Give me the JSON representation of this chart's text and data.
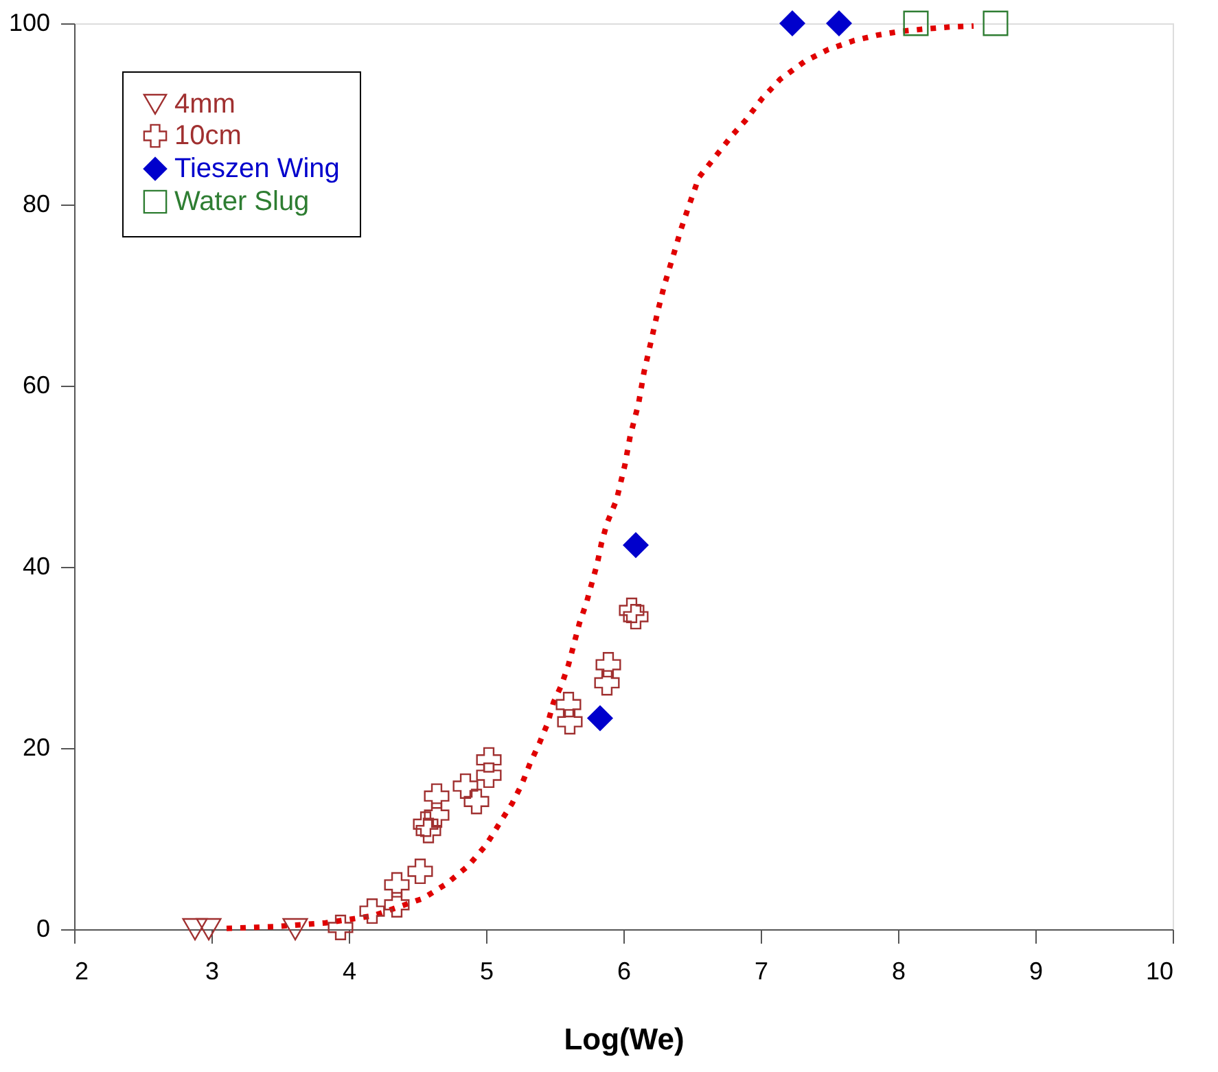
{
  "chart_data": {
    "type": "scatter",
    "xlabel": "Log(We)",
    "xlim": [
      2,
      10
    ],
    "xticks": [
      2,
      3,
      4,
      5,
      6,
      7,
      8,
      9,
      10
    ],
    "ylim": [
      0,
      100
    ],
    "yticks": [
      0,
      20,
      40,
      60,
      80,
      100
    ],
    "grid": false,
    "legend": "top left",
    "series": [
      {
        "name": "4mm",
        "color": "#a03030",
        "marker": "triangle",
        "x": [
          2.88,
          2.98,
          3.61
        ],
        "values": [
          0,
          0,
          0
        ]
      },
      {
        "name": "10cm",
        "color": "#a03030",
        "marker": "cross",
        "x": [
          3.94,
          4.17,
          4.35,
          4.35,
          4.52,
          4.58,
          4.56,
          4.64,
          4.64,
          4.85,
          4.93,
          5.02,
          5.02,
          5.6,
          5.61,
          5.89,
          5.88,
          6.06,
          6.09
        ],
        "values": [
          0.2,
          2,
          4.9,
          2.7,
          6.4,
          10.9,
          11.6,
          12.6,
          14.7,
          15.8,
          14.1,
          17,
          18.7,
          24.8,
          22.9,
          29.2,
          27.2,
          35.2,
          34.5
        ]
      },
      {
        "name": "Tieszen Wing",
        "color": "#0000cc",
        "marker": "diamond",
        "x": [
          5.83,
          6.09,
          7.23,
          7.57
        ],
        "values": [
          23.3,
          42.4,
          100,
          100
        ]
      },
      {
        "name": "Water Slug",
        "color": "#2e7d32",
        "marker": "square",
        "x": [
          8.13,
          8.71
        ],
        "values": [
          100,
          100
        ]
      },
      {
        "type": "line",
        "color": "#e00000",
        "line_style": "dotted",
        "marker": "none",
        "x": [
          3.11,
          3.29,
          3.47,
          3.83,
          4.01,
          4.18,
          4.54,
          4.71,
          4.87,
          5.0,
          5.09,
          5.19,
          5.26,
          5.32,
          5.39,
          5.45,
          5.49,
          5.55,
          5.6,
          5.64,
          5.68,
          5.73,
          5.77,
          5.81,
          5.84,
          5.88,
          5.95,
          6.01,
          6.05,
          6.11,
          6.15,
          6.2,
          6.25,
          6.3,
          6.36,
          6.42,
          6.48,
          6.55,
          6.67,
          6.79,
          6.89,
          7.01,
          7.14,
          7.32,
          7.49,
          7.68,
          7.85,
          8.01,
          8.21,
          8.38,
          8.55
        ],
        "values": [
          0.1,
          0.2,
          0.3,
          0.7,
          1.1,
          1.5,
          3.4,
          5.0,
          7.0,
          9.3,
          11.5,
          13.9,
          16.0,
          18.3,
          20.6,
          22.8,
          25.0,
          27.0,
          29.2,
          31.5,
          33.8,
          36.0,
          38.2,
          40.4,
          42.6,
          44.8,
          47.4,
          51.2,
          54.5,
          58.0,
          61.5,
          64.8,
          68.2,
          71.2,
          74.2,
          77.3,
          80.0,
          83.0,
          85.3,
          87.6,
          89.3,
          91.7,
          93.8,
          95.8,
          97.1,
          98.1,
          98.7,
          99.1,
          99.4,
          99.6,
          99.7
        ]
      }
    ]
  }
}
